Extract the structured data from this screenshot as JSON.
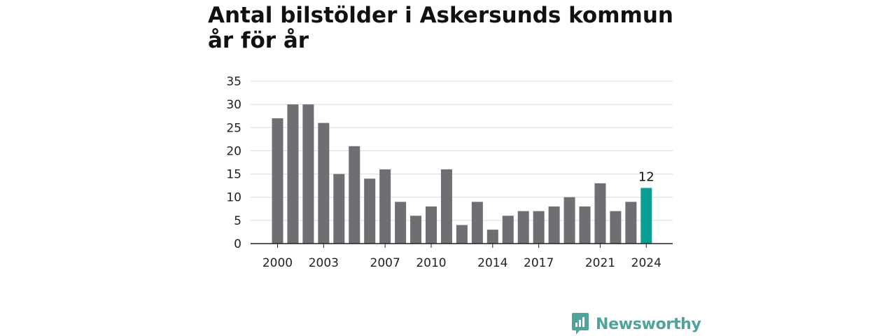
{
  "title_line1": "Antal bilstölder i Askersunds kommun",
  "title_line2": "år för år",
  "brand": "Newsworthy",
  "colors": {
    "bar": "#6e6e73",
    "highlight": "#0a9e95",
    "brand": "#4fa39a"
  },
  "chart_data": {
    "type": "bar",
    "title": "Antal bilstölder i Askersunds kommun år för år",
    "xlabel": "",
    "ylabel": "",
    "ylim": [
      0,
      35
    ],
    "yticks": [
      0,
      5,
      10,
      15,
      20,
      25,
      30,
      35
    ],
    "grid": true,
    "categories": [
      2000,
      2001,
      2002,
      2003,
      2004,
      2005,
      2006,
      2007,
      2008,
      2009,
      2010,
      2011,
      2012,
      2013,
      2014,
      2015,
      2016,
      2017,
      2018,
      2019,
      2020,
      2021,
      2022,
      2023,
      2024
    ],
    "values": [
      27,
      30,
      30,
      26,
      15,
      21,
      14,
      16,
      9,
      6,
      8,
      16,
      4,
      9,
      3,
      6,
      7,
      7,
      8,
      10,
      8,
      13,
      7,
      9,
      12
    ],
    "xtick_labels": [
      2000,
      2003,
      2007,
      2010,
      2014,
      2017,
      2021,
      2024
    ],
    "highlight_index": 24,
    "highlight_label": "12"
  }
}
